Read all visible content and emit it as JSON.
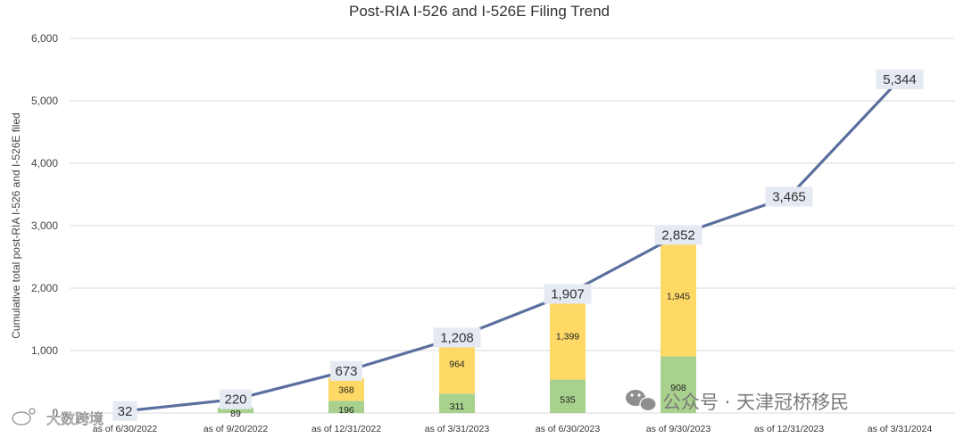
{
  "chart_data": {
    "type": "bar+line",
    "title": "Post-RIA I-526 and I-526E Filing Trend",
    "ylabel": "Cumulative total post-RIA I-526 and I-526E filed",
    "xlabel": "",
    "ylim": [
      0,
      6000
    ],
    "yticks": [
      "0",
      "1,000",
      "2,000",
      "3,000",
      "4,000",
      "5,000",
      "6,000"
    ],
    "grid": true,
    "categories": [
      "as of 6/30/2022",
      "as of 9/20/2022",
      "as of 12/31/2022",
      "as of 3/31/2023",
      "as of 6/30/2023",
      "as of 9/30/2023",
      "as of 12/31/2023",
      "as of 3/31/2024"
    ],
    "bar_series": [
      {
        "values": [
          null,
          89,
          196,
          311,
          535,
          908,
          null,
          null
        ],
        "labels": [
          "",
          "89",
          "196",
          "311",
          "535",
          "908",
          "",
          ""
        ]
      },
      {
        "values": [
          null,
          null,
          368,
          964,
          1399,
          1945,
          null,
          null
        ],
        "labels": [
          "",
          "",
          "368",
          "964",
          "1,399",
          "1,945",
          "",
          ""
        ]
      }
    ],
    "line_series": {
      "values": [
        32,
        220,
        673,
        1208,
        1907,
        2852,
        3465,
        5344
      ],
      "labels": [
        "32",
        "220",
        "673",
        "1,208",
        "1,907",
        "2,852",
        "3,465",
        "5,344"
      ]
    }
  },
  "colors": {
    "green": "#a9d18e",
    "yellow": "#ffd966",
    "line": "#5b6f9e",
    "grid": "#d9d9d9",
    "label_bg": "#e5e9f2"
  },
  "watermarks": {
    "left": "大数跨境",
    "right": "公众号 · 天津冠桥移民"
  }
}
